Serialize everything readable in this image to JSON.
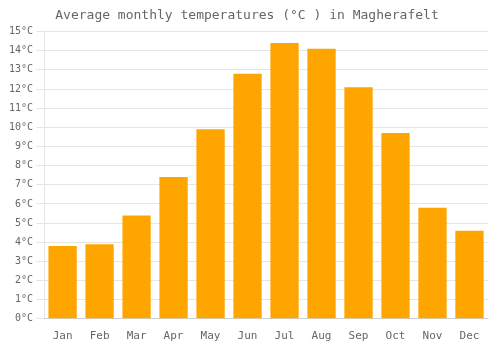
{
  "chart_data": {
    "type": "bar",
    "title": "Average monthly temperatures (°C ) in Magherafelt",
    "categories": [
      "Jan",
      "Feb",
      "Mar",
      "Apr",
      "May",
      "Jun",
      "Jul",
      "Aug",
      "Sep",
      "Oct",
      "Nov",
      "Dec"
    ],
    "values": [
      3.8,
      3.9,
      5.4,
      7.4,
      9.9,
      12.8,
      14.4,
      14.1,
      12.1,
      9.7,
      5.8,
      4.6
    ],
    "color": "#FFA500",
    "ylim": [
      0,
      15
    ],
    "yticks": [
      {
        "value": 0,
        "label": "0°C"
      },
      {
        "value": 1,
        "label": "1°C"
      },
      {
        "value": 2,
        "label": "2°C"
      },
      {
        "value": 3,
        "label": "3°C"
      },
      {
        "value": 4,
        "label": "4°C"
      },
      {
        "value": 5,
        "label": "5°C"
      },
      {
        "value": 6,
        "label": "6°C"
      },
      {
        "value": 7,
        "label": "7°C"
      },
      {
        "value": 8,
        "label": "8°C"
      },
      {
        "value": 9,
        "label": "9°C"
      },
      {
        "value": 10,
        "label": "10°C"
      },
      {
        "value": 11,
        "label": "11°C"
      },
      {
        "value": 12,
        "label": "12°C"
      },
      {
        "value": 13,
        "label": "13°C"
      },
      {
        "value": 14,
        "label": "14°C"
      },
      {
        "value": 15,
        "label": "15°C"
      }
    ],
    "grid": true
  }
}
